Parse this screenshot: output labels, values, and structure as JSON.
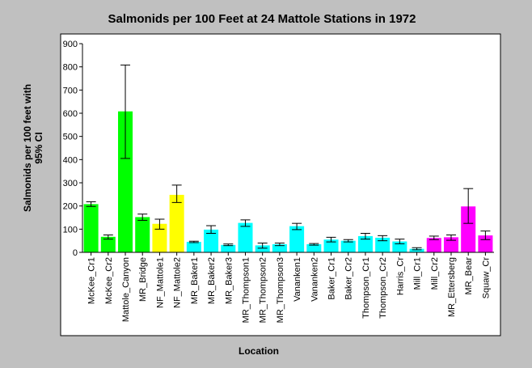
{
  "chart_data": {
    "type": "bar",
    "title": "Salmonids per 100 Feet at 24 Mattole Stations in 1972",
    "xlabel": "Location",
    "ylabel_lines": [
      "Salmonids per 100 feet with",
      "95% CI"
    ],
    "ylim": [
      0,
      900
    ],
    "yticks": [
      0,
      100,
      200,
      300,
      400,
      500,
      600,
      700,
      800,
      900
    ],
    "grid": false,
    "legend": "none",
    "categories": [
      "McKee_Cr1",
      "McKee_Cr2",
      "Mattole_Canyon",
      "MR_Bridge",
      "NF_Mattole1",
      "NF_Mattole2",
      "MR_Baker1",
      "MR_Baker2",
      "MR_Baker3",
      "MR_Thompson1",
      "MR_Thompson2",
      "MR_Thompson3",
      "Vananken1",
      "Vananken2",
      "Baker_Cr1",
      "Baker_Cr2",
      "Thompson_Cr1",
      "Thompson_Cr2",
      "Harris_Cr",
      "Mill_Cr1",
      "Mill_Cr2",
      "MR_Ettersberg",
      "MR_Bear",
      "Squaw_Cr"
    ],
    "values": [
      208,
      67,
      608,
      152,
      123,
      248,
      45,
      98,
      32,
      127,
      30,
      35,
      113,
      35,
      55,
      50,
      70,
      63,
      47,
      15,
      62,
      65,
      198,
      73
    ],
    "ci_low": [
      198,
      57,
      405,
      138,
      100,
      215,
      42,
      82,
      29,
      112,
      18,
      29,
      98,
      31,
      45,
      45,
      57,
      50,
      37,
      11,
      55,
      52,
      125,
      55
    ],
    "ci_high": [
      218,
      75,
      808,
      165,
      143,
      290,
      48,
      115,
      36,
      140,
      40,
      40,
      125,
      38,
      65,
      55,
      82,
      72,
      57,
      20,
      70,
      75,
      275,
      92
    ],
    "colors": [
      "#00ff00",
      "#00ff00",
      "#00ff00",
      "#00ff00",
      "#ffff00",
      "#ffff00",
      "#00ffff",
      "#00ffff",
      "#00ffff",
      "#00ffff",
      "#00ffff",
      "#00ffff",
      "#00ffff",
      "#00ffff",
      "#00ffff",
      "#00ffff",
      "#00ffff",
      "#00ffff",
      "#00ffff",
      "#00ffff",
      "#ff00ff",
      "#ff00ff",
      "#ff00ff",
      "#ff00ff"
    ]
  }
}
